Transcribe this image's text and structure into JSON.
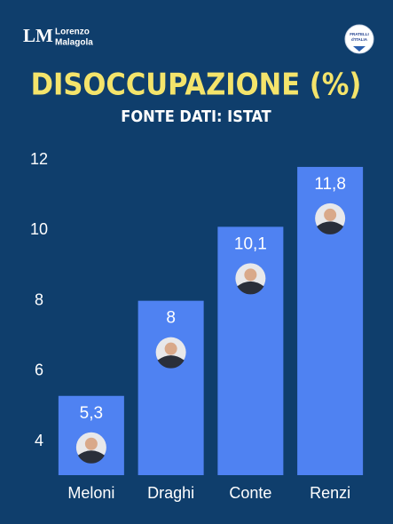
{
  "header": {
    "logo_mark": "LM",
    "logo_name": [
      "Lorenzo",
      "Malagola"
    ],
    "badge": [
      "FRATELLI",
      "d'ITALIA"
    ]
  },
  "chart_data": {
    "type": "bar",
    "title": "DISOCCUPAZIONE (%)",
    "subtitle": "FONTE DATI: ISTAT",
    "categories": [
      "Meloni",
      "Draghi",
      "Conte",
      "Renzi"
    ],
    "values": [
      5.3,
      8,
      10.1,
      11.8
    ],
    "value_labels": [
      "5,3",
      "8",
      "10,1",
      "11,8"
    ],
    "color": "#4f82f2",
    "ylim": [
      3.05,
      12
    ],
    "yticks": [
      4,
      6,
      8,
      10,
      12
    ],
    "grid": false
  }
}
